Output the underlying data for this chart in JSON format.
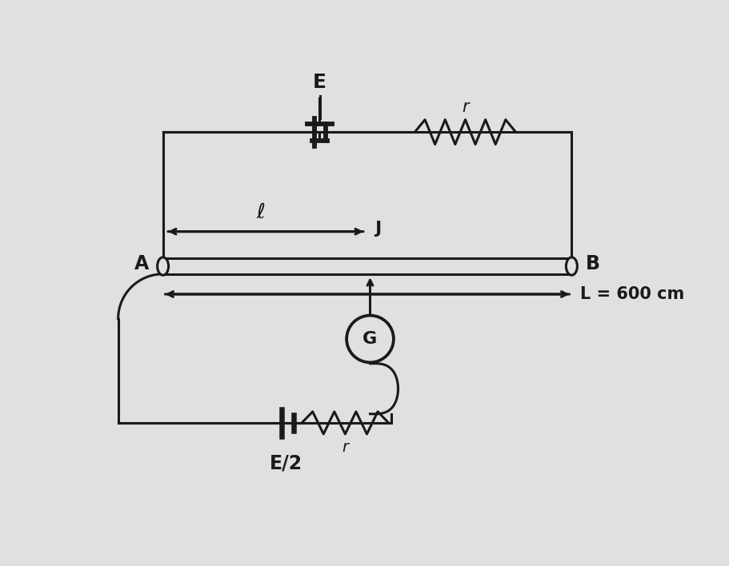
{
  "bg_color": "#e0e0e0",
  "line_color": "#1a1a1a",
  "text_color": "#1a1a1a",
  "label_E": "E",
  "label_r_top": "r",
  "label_ell": "ℓ",
  "label_J": "J",
  "label_A": "A",
  "label_B": "B",
  "label_G": "G",
  "label_L": "L = 600 cm",
  "label_E2": "E/2",
  "label_r_bot": "r",
  "figsize": [
    9.11,
    7.08
  ],
  "dpi": 100
}
